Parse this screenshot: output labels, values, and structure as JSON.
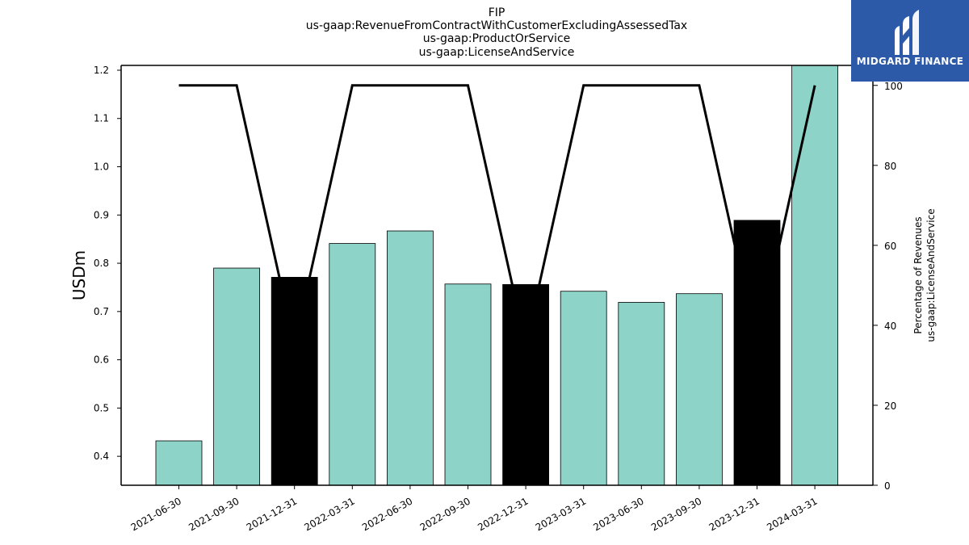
{
  "chart_data": {
    "type": "bar",
    "title_lines": [
      "FIP",
      "us-gaap:RevenueFromContractWithCustomerExcludingAssessedTax",
      "us-gaap:ProductOrService",
      "us-gaap:LicenseAndService"
    ],
    "ylabel": "USDm",
    "y2label_lines": [
      "Percentage of Revenues",
      "us-gaap:LicenseAndService"
    ],
    "categories": [
      "2021-06-30",
      "2021-09-30",
      "2021-12-31",
      "2022-03-31",
      "2022-06-30",
      "2022-09-30",
      "2022-12-31",
      "2023-03-31",
      "2023-06-30",
      "2023-09-30",
      "2023-12-31",
      "2024-03-31"
    ],
    "values": [
      0.432,
      0.79,
      0.771,
      0.841,
      0.867,
      0.757,
      0.756,
      0.742,
      0.719,
      0.737,
      0.889,
      1.21
    ],
    "bar_colors": [
      "#8dd3c7",
      "#8dd3c7",
      "#000000",
      "#8dd3c7",
      "#8dd3c7",
      "#8dd3c7",
      "#000000",
      "#8dd3c7",
      "#8dd3c7",
      "#8dd3c7",
      "#000000",
      "#8dd3c7"
    ],
    "ylim": [
      0.34,
      1.21
    ],
    "yticks": [
      0.4,
      0.5,
      0.6,
      0.7,
      0.8,
      0.9,
      1.0,
      1.1,
      1.2
    ],
    "ytick_labels": [
      "0.4",
      "0.5",
      "0.6",
      "0.7",
      "0.8",
      "0.9",
      "1.0",
      "1.1",
      "1.2"
    ],
    "secondary": {
      "type": "line",
      "values": [
        100,
        100,
        35,
        100,
        100,
        100,
        35,
        100,
        100,
        100,
        35,
        100
      ],
      "ylim": [
        0,
        105
      ],
      "yticks": [
        0,
        20,
        40,
        60,
        80,
        100
      ],
      "ytick_labels": [
        "0",
        "20",
        "40",
        "60",
        "80",
        "100"
      ],
      "color": "#000000"
    },
    "grid": false
  },
  "logo": {
    "text": "MIDGARD FINANCE",
    "bg_color": "#2c5aa8"
  }
}
